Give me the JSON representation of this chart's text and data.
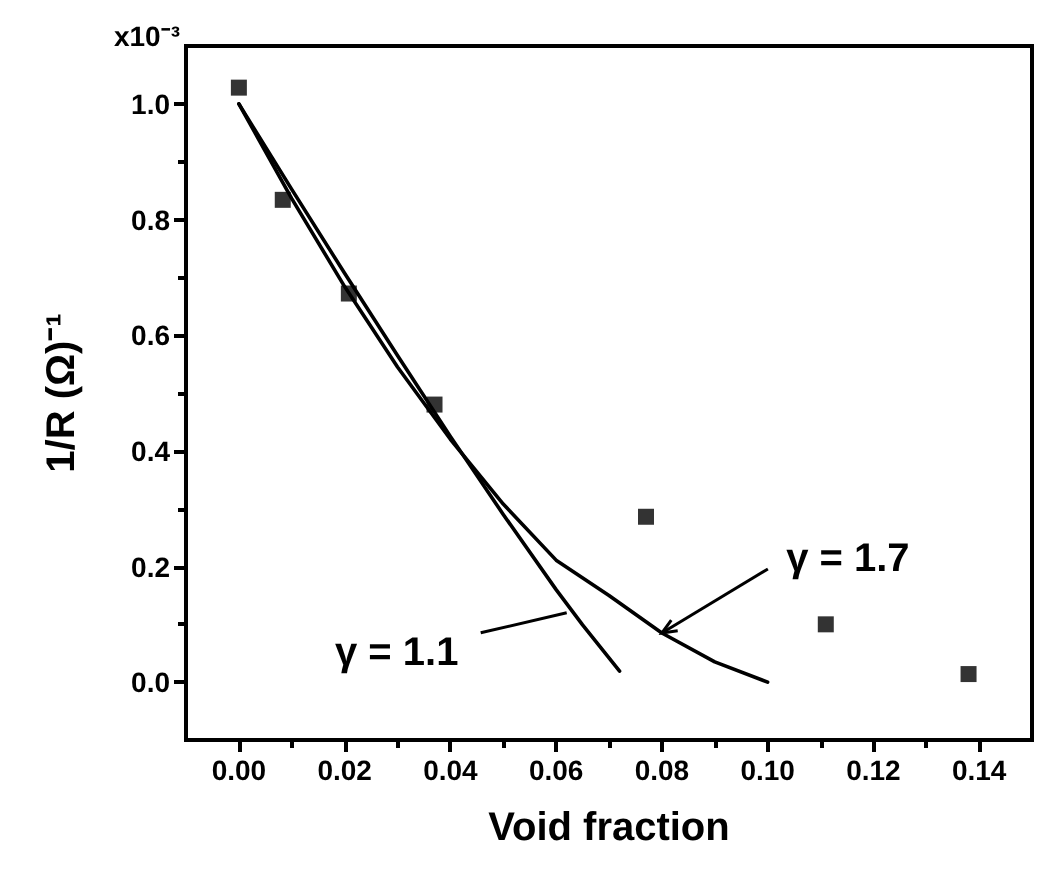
{
  "chart_data": {
    "type": "scatter",
    "xlabel": "Void fraction",
    "ylabel": "1/R (Ω)⁻¹",
    "annotations": [
      "x10⁻³",
      {
        "text": "γ = 1.1",
        "x": 0.062,
        "y": 0.12
      },
      {
        "text": "γ = 1.7",
        "x": 0.08,
        "y": 0.085
      }
    ],
    "series": [
      {
        "color": "#000000",
        "marker": "square",
        "x": [
          0.0,
          0.0083,
          0.0208,
          0.037,
          0.077,
          0.111,
          0.138
        ],
        "values": [
          1.028,
          0.834,
          0.672,
          0.48,
          0.286,
          0.1,
          0.014
        ]
      },
      {
        "type": "line",
        "color": "#000000",
        "marker": "none",
        "line_style": "solid",
        "x": [
          0.0,
          0.01,
          0.02,
          0.03,
          0.04,
          0.05,
          0.06,
          0.065,
          0.072
        ],
        "values": [
          1.0,
          0.852,
          0.707,
          0.565,
          0.425,
          0.29,
          0.16,
          0.099,
          0.019
        ]
      },
      {
        "type": "line",
        "color": "#000000",
        "marker": "none",
        "line_style": "solid",
        "x": [
          0.0,
          0.01,
          0.02,
          0.03,
          0.04,
          0.05,
          0.06,
          0.07,
          0.08,
          0.09,
          0.1
        ],
        "values": [
          1.0,
          0.836,
          0.684,
          0.545,
          0.42,
          0.308,
          0.211,
          0.15,
          0.085,
          0.035,
          0.0
        ]
      }
    ],
    "xlim": [
      -0.01,
      0.15
    ],
    "xticks": [
      {
        "value": 0,
        "label": "0.00"
      },
      0.02,
      0.04,
      0.06,
      0.08,
      {
        "value": 0.1,
        "label": "0.10"
      },
      0.12,
      0.14
    ],
    "ylim": [
      -0.1,
      1.1
    ],
    "yticks": [
      {
        "value": 0,
        "label": "0.0"
      },
      0.2,
      0.4,
      0.6,
      0.8,
      {
        "value": 1,
        "label": "1.0"
      }
    ],
    "grid": false
  }
}
